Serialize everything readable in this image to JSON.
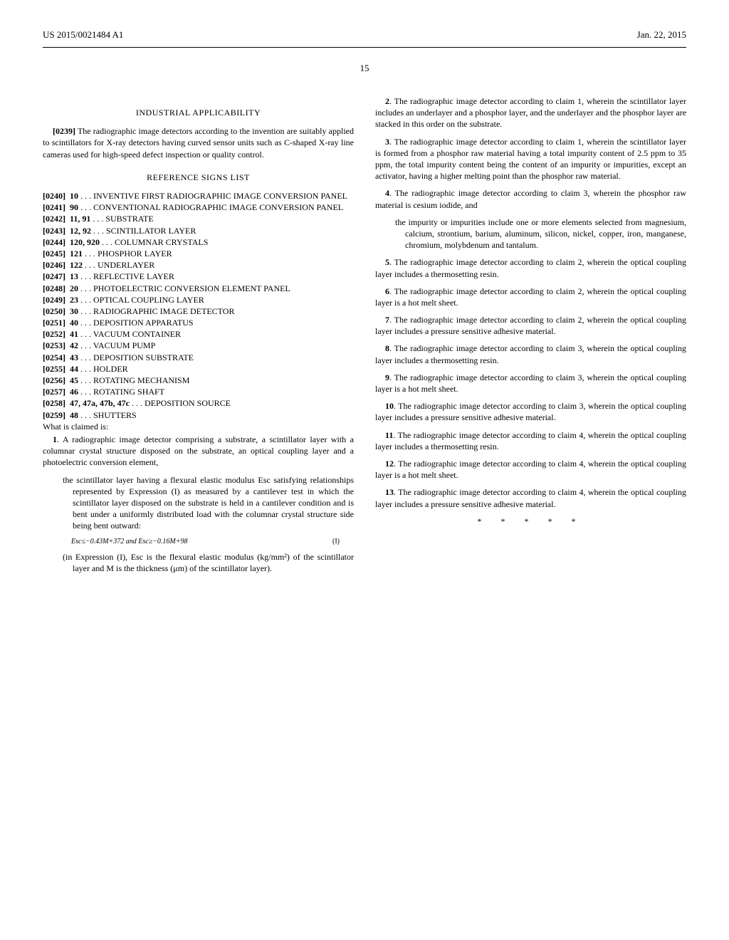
{
  "header": {
    "pub_number": "US 2015/0021484 A1",
    "pub_date": "Jan. 22, 2015"
  },
  "page_number": "15",
  "left_col": {
    "section_applicability": "INDUSTRIAL APPLICABILITY",
    "para_0239_num": "[0239]",
    "para_0239": "The radiographic image detectors according to the invention are suitably applied to scintillators for X-ray detectors having curved sensor units such as C-shaped X-ray line cameras used for high-speed defect inspection or quality control.",
    "section_refs": "REFERENCE SIGNS LIST",
    "refs": [
      {
        "num": "[0240]",
        "code": "10",
        "dots": " . . . ",
        "label": "INVENTIVE FIRST RADIOGRAPHIC IMAGE CONVERSION PANEL"
      },
      {
        "num": "[0241]",
        "code": "90",
        "dots": " . . . ",
        "label": "CONVENTIONAL RADIOGRAPHIC IMAGE CONVERSION PANEL"
      },
      {
        "num": "[0242]",
        "code": "11, 91",
        "dots": " . . . ",
        "label": "SUBSTRATE"
      },
      {
        "num": "[0243]",
        "code": "12, 92",
        "dots": " . . . ",
        "label": "SCINTILLATOR LAYER"
      },
      {
        "num": "[0244]",
        "code": "120, 920",
        "dots": " . . . ",
        "label": "COLUMNAR CRYSTALS"
      },
      {
        "num": "[0245]",
        "code": "121",
        "dots": " . . . ",
        "label": "PHOSPHOR LAYER"
      },
      {
        "num": "[0246]",
        "code": "122",
        "dots": " . . . ",
        "label": "UNDERLAYER"
      },
      {
        "num": "[0247]",
        "code": "13",
        "dots": " . . . ",
        "label": "REFLECTIVE LAYER"
      },
      {
        "num": "[0248]",
        "code": "20",
        "dots": " . . . ",
        "label": "PHOTOELECTRIC CONVERSION ELEMENT PANEL"
      },
      {
        "num": "[0249]",
        "code": "23",
        "dots": " . . . ",
        "label": "OPTICAL COUPLING LAYER"
      },
      {
        "num": "[0250]",
        "code": "30",
        "dots": " . . . ",
        "label": "RADIOGRAPHIC IMAGE DETECTOR"
      },
      {
        "num": "[0251]",
        "code": "40",
        "dots": " . . . ",
        "label": "DEPOSITION APPARATUS"
      },
      {
        "num": "[0252]",
        "code": "41",
        "dots": " . . . ",
        "label": "VACUUM CONTAINER"
      },
      {
        "num": "[0253]",
        "code": "42",
        "dots": " . . . ",
        "label": "VACUUM PUMP"
      },
      {
        "num": "[0254]",
        "code": "43",
        "dots": " . . . ",
        "label": "DEPOSITION SUBSTRATE"
      },
      {
        "num": "[0255]",
        "code": "44",
        "dots": " . . . ",
        "label": "HOLDER"
      },
      {
        "num": "[0256]",
        "code": "45",
        "dots": " . . . ",
        "label": "ROTATING MECHANISM"
      },
      {
        "num": "[0257]",
        "code": "46",
        "dots": " . . . ",
        "label": "ROTATING SHAFT"
      },
      {
        "num": "[0258]",
        "code": "47, 47a, 47b, 47c",
        "dots": " . . . ",
        "label": "DEPOSITION SOURCE"
      },
      {
        "num": "[0259]",
        "code": "48",
        "dots": " . . . ",
        "label": "SHUTTERS"
      }
    ],
    "claimed_intro": "What is claimed is:",
    "claim1_num": "1",
    "claim1": ". A radiographic image detector comprising a substrate, a scintillator layer with a columnar crystal structure disposed on the substrate, an optical coupling layer and a photoelectric conversion element,",
    "claim1_inner1": "the scintillator layer having a flexural elastic modulus Esc satisfying relationships represented by Expression (I) as measured by a cantilever test in which the scintillator layer disposed on the substrate is held in a cantilever condition and is bent under a uniformly distributed load with the columnar crystal structure side being bent outward:",
    "formula_text": "Esc≤−0.43M+372 and Esc≥−0.16M+98",
    "formula_label": "(I)",
    "claim1_inner2": "(in Expression (I), Esc is the flexural elastic modulus (kg/mm²) of the scintillator layer and M is the thickness (μm) of the scintillator layer)."
  },
  "right_col": {
    "claims": [
      {
        "num": "2",
        "text": ". The radiographic image detector according to claim 1, wherein the scintillator layer includes an underlayer and a phosphor layer, and the underlayer and the phosphor layer are stacked in this order on the substrate."
      },
      {
        "num": "3",
        "text": ". The radiographic image detector according to claim 1, wherein the scintillator layer is formed from a phosphor raw material having a total impurity content of 2.5 ppm to 35 ppm, the total impurity content being the content of an impurity or impurities, except an activator, having a higher melting point than the phosphor raw material."
      },
      {
        "num": "4",
        "text": ". The radiographic image detector according to claim 3, wherein the phosphor raw material is cesium iodide, and"
      }
    ],
    "claim4_inner": "the impurity or impurities include one or more elements selected from magnesium, calcium, strontium, barium, aluminum, silicon, nickel, copper, iron, manganese, chromium, molybdenum and tantalum.",
    "claims2": [
      {
        "num": "5",
        "text": ". The radiographic image detector according to claim 2, wherein the optical coupling layer includes a thermosetting resin."
      },
      {
        "num": "6",
        "text": ". The radiographic image detector according to claim 2, wherein the optical coupling layer is a hot melt sheet."
      },
      {
        "num": "7",
        "text": ". The radiographic image detector according to claim 2, wherein the optical coupling layer includes a pressure sensitive adhesive material."
      },
      {
        "num": "8",
        "text": ". The radiographic image detector according to claim 3, wherein the optical coupling layer includes a thermosetting resin."
      },
      {
        "num": "9",
        "text": ". The radiographic image detector according to claim 3, wherein the optical coupling layer is a hot melt sheet."
      },
      {
        "num": "10",
        "text": ". The radiographic image detector according to claim 3, wherein the optical coupling layer includes a pressure sensitive adhesive material."
      },
      {
        "num": "11",
        "text": ". The radiographic image detector according to claim 4, wherein the optical coupling layer includes a thermosetting resin."
      },
      {
        "num": "12",
        "text": ". The radiographic image detector according to claim 4, wherein the optical coupling layer is a hot melt sheet."
      },
      {
        "num": "13",
        "text": ". The radiographic image detector according to claim 4, wherein the optical coupling layer includes a pressure sensitive adhesive material."
      }
    ],
    "stars": "* * * * *"
  }
}
